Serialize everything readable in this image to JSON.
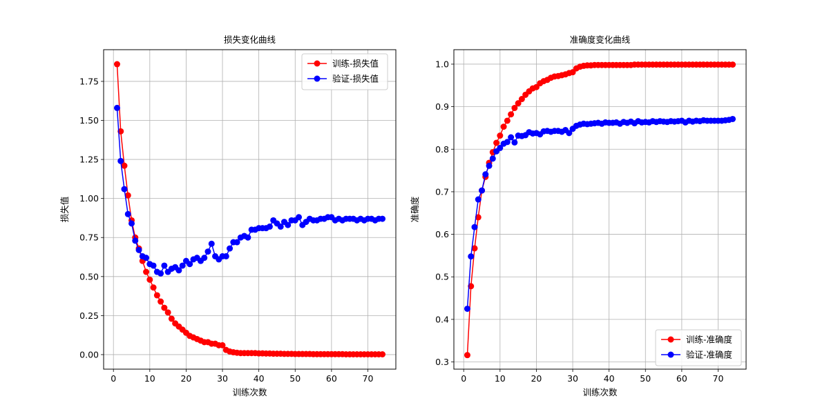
{
  "chart_data": [
    {
      "type": "line",
      "title": "损失变化曲线",
      "xlabel": "训练次数",
      "ylabel": "损失值",
      "xlim": [
        -2.7,
        77.7
      ],
      "ylim": [
        -0.093,
        1.953
      ],
      "xticks": [
        0,
        10,
        20,
        30,
        40,
        50,
        60,
        70
      ],
      "yticks": [
        0.0,
        0.25,
        0.5,
        0.75,
        1.0,
        1.25,
        1.5,
        1.75
      ],
      "ytick_format": 2,
      "grid": true,
      "legend_position": "upper-right",
      "x": [
        1,
        2,
        3,
        4,
        5,
        6,
        7,
        8,
        9,
        10,
        11,
        12,
        13,
        14,
        15,
        16,
        17,
        18,
        19,
        20,
        21,
        22,
        23,
        24,
        25,
        26,
        27,
        28,
        29,
        30,
        31,
        32,
        33,
        34,
        35,
        36,
        37,
        38,
        39,
        40,
        41,
        42,
        43,
        44,
        45,
        46,
        47,
        48,
        49,
        50,
        51,
        52,
        53,
        54,
        55,
        56,
        57,
        58,
        59,
        60,
        61,
        62,
        63,
        64,
        65,
        66,
        67,
        68,
        69,
        70,
        71,
        72,
        73,
        74
      ],
      "series": [
        {
          "name": "训练-损失值",
          "color": "#ff0000",
          "values": [
            1.86,
            1.43,
            1.21,
            1.02,
            0.86,
            0.75,
            0.68,
            0.6,
            0.53,
            0.48,
            0.43,
            0.38,
            0.34,
            0.3,
            0.27,
            0.23,
            0.2,
            0.18,
            0.16,
            0.14,
            0.12,
            0.11,
            0.1,
            0.09,
            0.08,
            0.08,
            0.07,
            0.07,
            0.06,
            0.06,
            0.03,
            0.02,
            0.015,
            0.012,
            0.01,
            0.01,
            0.01,
            0.01,
            0.01,
            0.008,
            0.008,
            0.007,
            0.007,
            0.006,
            0.006,
            0.006,
            0.005,
            0.005,
            0.005,
            0.004,
            0.004,
            0.004,
            0.004,
            0.004,
            0.003,
            0.003,
            0.003,
            0.003,
            0.003,
            0.003,
            0.003,
            0.003,
            0.003,
            0.002,
            0.002,
            0.002,
            0.002,
            0.002,
            0.002,
            0.002,
            0.002,
            0.002,
            0.002,
            0.002
          ]
        },
        {
          "name": "验证-损失值",
          "color": "#0000ff",
          "values": [
            1.58,
            1.24,
            1.06,
            0.9,
            0.84,
            0.73,
            0.67,
            0.63,
            0.62,
            0.58,
            0.57,
            0.53,
            0.52,
            0.57,
            0.53,
            0.55,
            0.56,
            0.54,
            0.57,
            0.6,
            0.58,
            0.61,
            0.62,
            0.6,
            0.62,
            0.66,
            0.71,
            0.63,
            0.61,
            0.63,
            0.63,
            0.68,
            0.72,
            0.72,
            0.75,
            0.76,
            0.75,
            0.8,
            0.8,
            0.81,
            0.81,
            0.81,
            0.82,
            0.86,
            0.84,
            0.82,
            0.85,
            0.83,
            0.86,
            0.86,
            0.88,
            0.83,
            0.85,
            0.87,
            0.86,
            0.86,
            0.87,
            0.87,
            0.88,
            0.88,
            0.86,
            0.87,
            0.86,
            0.87,
            0.87,
            0.87,
            0.86,
            0.87,
            0.86,
            0.87,
            0.87,
            0.86,
            0.87,
            0.87
          ]
        }
      ]
    },
    {
      "type": "line",
      "title": "准确度变化曲线",
      "xlabel": "训练次数",
      "ylabel": "准确度",
      "xlim": [
        -2.7,
        77.7
      ],
      "ylim": [
        0.283,
        1.034
      ],
      "xticks": [
        0,
        10,
        20,
        30,
        40,
        50,
        60,
        70
      ],
      "yticks": [
        0.3,
        0.4,
        0.5,
        0.6,
        0.7,
        0.8,
        0.9,
        1.0
      ],
      "ytick_format": 1,
      "grid": true,
      "legend_position": "lower-right",
      "x": [
        1,
        2,
        3,
        4,
        5,
        6,
        7,
        8,
        9,
        10,
        11,
        12,
        13,
        14,
        15,
        16,
        17,
        18,
        19,
        20,
        21,
        22,
        23,
        24,
        25,
        26,
        27,
        28,
        29,
        30,
        31,
        32,
        33,
        34,
        35,
        36,
        37,
        38,
        39,
        40,
        41,
        42,
        43,
        44,
        45,
        46,
        47,
        48,
        49,
        50,
        51,
        52,
        53,
        54,
        55,
        56,
        57,
        58,
        59,
        60,
        61,
        62,
        63,
        64,
        65,
        66,
        67,
        68,
        69,
        70,
        71,
        72,
        73,
        74
      ],
      "series": [
        {
          "name": "训练-准确度",
          "color": "#ff0000",
          "values": [
            0.316,
            0.478,
            0.567,
            0.64,
            0.703,
            0.735,
            0.768,
            0.793,
            0.815,
            0.832,
            0.853,
            0.867,
            0.882,
            0.897,
            0.908,
            0.918,
            0.928,
            0.936,
            0.943,
            0.946,
            0.955,
            0.96,
            0.963,
            0.968,
            0.971,
            0.972,
            0.974,
            0.976,
            0.979,
            0.981,
            0.99,
            0.994,
            0.996,
            0.997,
            0.997,
            0.998,
            0.998,
            0.998,
            0.998,
            0.998,
            0.998,
            0.998,
            0.998,
            0.998,
            0.998,
            0.998,
            0.999,
            0.999,
            0.999,
            0.999,
            0.999,
            0.999,
            0.999,
            0.999,
            0.999,
            0.999,
            0.999,
            0.999,
            0.999,
            0.999,
            0.999,
            0.999,
            0.999,
            0.999,
            0.999,
            0.999,
            0.999,
            0.999,
            0.999,
            0.999,
            0.999,
            0.999,
            0.999,
            0.999
          ]
        },
        {
          "name": "验证-准确度",
          "color": "#0000ff",
          "values": [
            0.425,
            0.548,
            0.617,
            0.682,
            0.703,
            0.741,
            0.761,
            0.778,
            0.795,
            0.803,
            0.813,
            0.817,
            0.828,
            0.816,
            0.832,
            0.831,
            0.833,
            0.84,
            0.837,
            0.838,
            0.835,
            0.842,
            0.843,
            0.841,
            0.843,
            0.843,
            0.841,
            0.845,
            0.838,
            0.848,
            0.855,
            0.858,
            0.86,
            0.859,
            0.86,
            0.861,
            0.862,
            0.86,
            0.863,
            0.862,
            0.862,
            0.863,
            0.86,
            0.864,
            0.862,
            0.865,
            0.861,
            0.866,
            0.863,
            0.864,
            0.863,
            0.866,
            0.864,
            0.866,
            0.865,
            0.864,
            0.866,
            0.865,
            0.866,
            0.867,
            0.863,
            0.867,
            0.865,
            0.867,
            0.866,
            0.868,
            0.867,
            0.867,
            0.867,
            0.867,
            0.867,
            0.868,
            0.869,
            0.871
          ]
        }
      ]
    }
  ]
}
